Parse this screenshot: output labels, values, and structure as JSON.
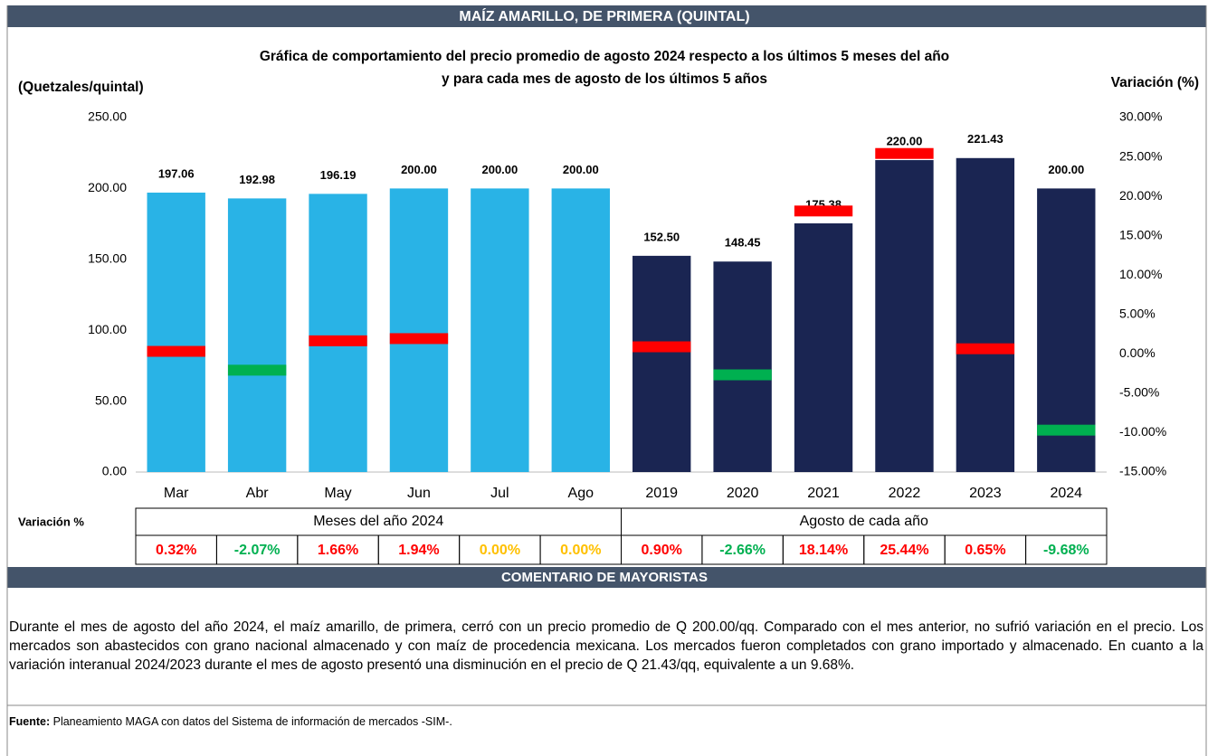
{
  "header": "MAÍZ AMARILLO, DE PRIMERA (QUINTAL)",
  "chart_data": {
    "type": "bar",
    "title": [
      "Gráfica de comportamiento del precio promedio de agosto 2024 respecto a los últimos 5 meses del año",
      "y para cada mes de agosto de los últimos 5 años"
    ],
    "y_label": "(Quetzales/quintal)",
    "y2_label": "Variación (%)",
    "categories": [
      "Mar",
      "Abr",
      "May",
      "Jun",
      "Jul",
      "Ago",
      "2019",
      "2020",
      "2021",
      "2022",
      "2023",
      "2024"
    ],
    "values": [
      197.06,
      192.98,
      196.19,
      200.0,
      200.0,
      200.0,
      152.5,
      148.45,
      175.38,
      220.0,
      221.43,
      200.0
    ],
    "value_labels": [
      "197.06",
      "192.98",
      "196.19",
      "200.00",
      "200.00",
      "200.00",
      "152.50",
      "148.45",
      "175.38",
      "220.00",
      "221.43",
      "200.00"
    ],
    "colors": [
      "#29b3e6",
      "#29b3e6",
      "#29b3e6",
      "#29b3e6",
      "#29b3e6",
      "#29b3e6",
      "#1a2552",
      "#1a2552",
      "#1a2552",
      "#1a2552",
      "#1a2552",
      "#1a2552"
    ],
    "ylim": [
      0,
      250
    ],
    "yticks": [
      {
        "value": 0,
        "label": "0.00"
      },
      {
        "value": 50,
        "label": "50.00"
      },
      {
        "value": 100,
        "label": "100.00"
      },
      {
        "value": 150,
        "label": "150.00"
      },
      {
        "value": 200,
        "label": "200.00"
      },
      {
        "value": 250,
        "label": "250.00"
      }
    ],
    "y2lim": [
      -15,
      30
    ],
    "y2ticks": [
      {
        "value": -15,
        "label": "-15.00%"
      },
      {
        "value": -10,
        "label": "-10.00%"
      },
      {
        "value": -5,
        "label": "-5.00%"
      },
      {
        "value": 0,
        "label": "0.00%"
      },
      {
        "value": 5,
        "label": "5.00%"
      },
      {
        "value": 10,
        "label": "10.00%"
      },
      {
        "value": 15,
        "label": "15.00%"
      },
      {
        "value": 20,
        "label": "20.00%"
      },
      {
        "value": 25,
        "label": "25.00%"
      },
      {
        "value": 30,
        "label": "30.00%"
      }
    ],
    "variation": {
      "axis": "y2",
      "label": "Variación %",
      "values": [
        0.32,
        -2.07,
        1.66,
        1.94,
        0.0,
        0.0,
        0.9,
        -2.66,
        18.14,
        25.44,
        0.65,
        -9.68
      ],
      "value_labels": [
        "0.32%",
        "-2.07%",
        "1.66%",
        "1.94%",
        "0.00%",
        "0.00%",
        "0.90%",
        "-2.66%",
        "18.14%",
        "25.44%",
        "0.65%",
        "-9.68%"
      ],
      "positive_color": "#ff0000",
      "negative_color": "#00b050",
      "zero_color": "#ffc000"
    },
    "groups": [
      "Meses del año  2024",
      "Agosto de cada año"
    ]
  },
  "comment": {
    "title": "COMENTARIO DE MAYORISTAS",
    "text": "Durante el mes de agosto del año 2024, el maíz amarillo, de primera, cerró con un precio promedio de Q 200.00/qq. Comparado con el mes anterior, no sufrió variación en el precio. Los mercados son abastecidos con grano nacional almacenado y con maíz de procedencia mexicana. Los mercados fueron completados con grano importado y almacenado. En cuanto a la variación interanual 2024/2023 durante el mes de agosto presentó una disminución en el precio de Q 21.43/qq, equivalente a un 9.68%."
  },
  "source": {
    "label": "Fuente:",
    "text": " Planeamiento MAGA con datos del Sistema de información de mercados -SIM-."
  }
}
